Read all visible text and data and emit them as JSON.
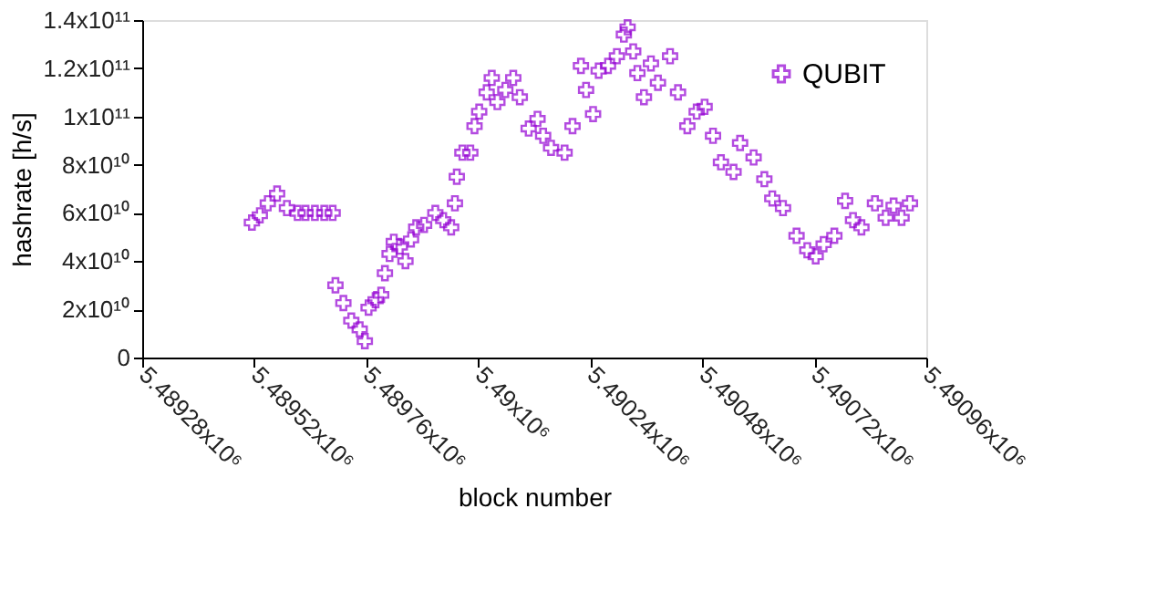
{
  "chart_data": {
    "type": "scatter",
    "xlabel": "block number",
    "ylabel": "hashrate [h/s]",
    "xlim": [
      5489280,
      5490960
    ],
    "ylim": [
      0,
      140000000000
    ],
    "xticks": [
      {
        "value": 5489280,
        "label": "5.48928x10⁶"
      },
      {
        "value": 5489520,
        "label": "5.48952x10⁶"
      },
      {
        "value": 5489760,
        "label": "5.48976x10⁶"
      },
      {
        "value": 5490000,
        "label": "5.49x10⁶"
      },
      {
        "value": 5490240,
        "label": "5.49024x10⁶"
      },
      {
        "value": 5490480,
        "label": "5.49048x10⁶"
      },
      {
        "value": 5490720,
        "label": "5.49072x10⁶"
      },
      {
        "value": 5490960,
        "label": "5.49096x10⁶"
      }
    ],
    "yticks": [
      0,
      {
        "value": 20000000000,
        "label": "2x10¹⁰"
      },
      {
        "value": 40000000000,
        "label": "4x10¹⁰"
      },
      {
        "value": 60000000000,
        "label": "6x10¹⁰"
      },
      {
        "value": 80000000000,
        "label": "8x10¹⁰"
      },
      {
        "value": 100000000000,
        "label": "1x10¹¹"
      },
      {
        "value": 120000000000,
        "label": "1.2x10¹¹"
      },
      {
        "value": 140000000000,
        "label": "1.4x10¹¹"
      }
    ],
    "grid": false,
    "legend": "top right",
    "marker": "cross",
    "series": [
      {
        "name": "QUBIT",
        "color": "#9400d3",
        "x": [
          5489515,
          5489532,
          5489549,
          5489569,
          5489590,
          5489613,
          5489630,
          5489650,
          5489670,
          5489688,
          5489694,
          5489711,
          5489728,
          5489746,
          5489757,
          5489765,
          5489780,
          5489792,
          5489800,
          5489810,
          5489819,
          5489832,
          5489844,
          5489856,
          5489867,
          5489884,
          5489908,
          5489925,
          5489942,
          5489950,
          5489954,
          5489966,
          5489983,
          5489992,
          5490002,
          5490018,
          5490029,
          5490041,
          5490058,
          5490075,
          5490089,
          5490108,
          5490127,
          5490139,
          5490156,
          5490185,
          5490202,
          5490220,
          5490231,
          5490246,
          5490258,
          5490278,
          5490297,
          5490312,
          5490320,
          5490332,
          5490341,
          5490355,
          5490370,
          5490385,
          5490411,
          5490428,
          5490448,
          5490468,
          5490485,
          5490503,
          5490520,
          5490547,
          5490561,
          5490590,
          5490613,
          5490630,
          5490653,
          5490682,
          5490705,
          5490723,
          5490740,
          5490763,
          5490786,
          5490803,
          5490821,
          5490850,
          5490873,
          5490890,
          5490907,
          5490925
        ],
        "values": [
          56000000000,
          59000000000,
          64000000000,
          68000000000,
          62000000000,
          60000000000,
          60000000000,
          60000000000,
          60000000000,
          60000000000,
          30000000000,
          22600000000,
          15300000000,
          11700000000,
          6800000000,
          20700000000,
          23800000000,
          26000000000,
          35000000000,
          43000000000,
          48000000000,
          46000000000,
          40000000000,
          49000000000,
          54000000000,
          55000000000,
          60000000000,
          57000000000,
          54000000000,
          64000000000,
          75000000000,
          85000000000,
          85000000000,
          96000000000,
          102000000000,
          110000000000,
          116000000000,
          106000000000,
          111000000000,
          116000000000,
          108000000000,
          95000000000,
          99000000000,
          92000000000,
          87000000000,
          85000000000,
          96000000000,
          121000000000,
          111000000000,
          101000000000,
          119000000000,
          121000000000,
          125000000000,
          134000000000,
          137000000000,
          127000000000,
          118000000000,
          108000000000,
          122000000000,
          114000000000,
          125000000000,
          110000000000,
          96000000000,
          102000000000,
          104000000000,
          92000000000,
          81000000000,
          77000000000,
          89000000000,
          83000000000,
          74000000000,
          66000000000,
          62000000000,
          50500000000,
          44500000000,
          42000000000,
          47000000000,
          50500000000,
          65000000000,
          57000000000,
          54000000000,
          64000000000,
          58000000000,
          63000000000,
          58000000000,
          64000000000
        ]
      }
    ]
  }
}
